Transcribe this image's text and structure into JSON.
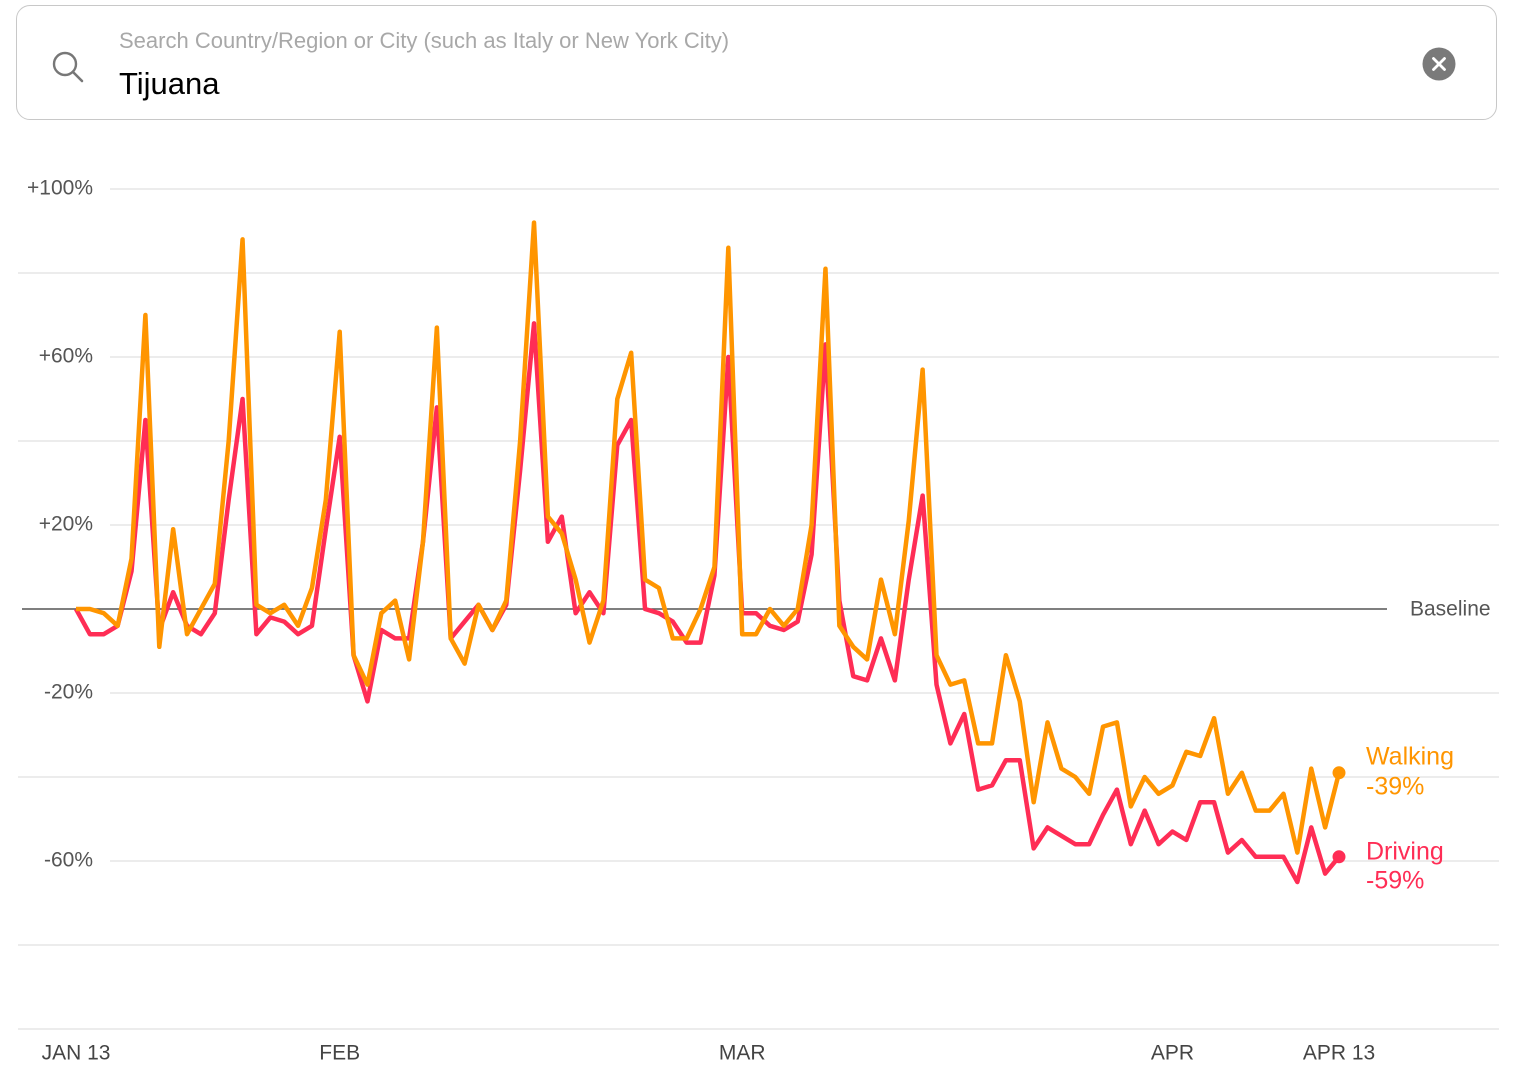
{
  "search": {
    "placeholder": "Search Country/Region or City (such as Italy or New York City)",
    "value": "Tijuana"
  },
  "chart_data": {
    "type": "line",
    "x": [
      0,
      1,
      2,
      3,
      4,
      5,
      6,
      7,
      8,
      9,
      10,
      11,
      12,
      13,
      14,
      15,
      16,
      17,
      18,
      19,
      20,
      21,
      22,
      23,
      24,
      25,
      26,
      27,
      28,
      29,
      30,
      31,
      32,
      33,
      34,
      35,
      36,
      37,
      38,
      39,
      40,
      41,
      42,
      43,
      44,
      45,
      46,
      47,
      48,
      49,
      50,
      51,
      52,
      53,
      54,
      55,
      56,
      57,
      58,
      59,
      60,
      61,
      62,
      63,
      64,
      65,
      66,
      67,
      68,
      69,
      70,
      71,
      72,
      73,
      74,
      75,
      76,
      77,
      78,
      79,
      80,
      81,
      82,
      83,
      84,
      85,
      86,
      87,
      88,
      89,
      90,
      91
    ],
    "xlim": [
      0,
      91
    ],
    "xticks": [
      {
        "value": 0,
        "label": "JAN 13"
      },
      {
        "value": 19,
        "label": "FEB"
      },
      {
        "value": 48,
        "label": "MAR"
      },
      {
        "value": 79,
        "label": "APR"
      },
      {
        "value": 91,
        "label": "APR 13"
      }
    ],
    "ylim": [
      -100,
      100
    ],
    "yticks": [
      {
        "value": 100,
        "label": "+100%"
      },
      {
        "value": 60,
        "label": "+60%"
      },
      {
        "value": 20,
        "label": "+20%"
      },
      {
        "value": -20,
        "label": "-20%"
      },
      {
        "value": -60,
        "label": "-60%"
      }
    ],
    "minor_yticks": [
      80,
      40,
      -40,
      -80,
      -100
    ],
    "baseline": {
      "value": 0,
      "label": "Baseline"
    },
    "grid": true,
    "series": [
      {
        "name": "Walking",
        "color": "#ff9500",
        "values": [
          0,
          0,
          -1,
          -4,
          12,
          70,
          -9,
          19,
          -6,
          0,
          6,
          40,
          88,
          1,
          -1,
          1,
          -4,
          5,
          26,
          66,
          -11,
          -18,
          -1,
          2,
          -12,
          16,
          67,
          -7,
          -13,
          1,
          -5,
          2,
          40,
          92,
          22,
          18,
          7,
          -8,
          2,
          50,
          61,
          7,
          5,
          -7,
          -7,
          0,
          10,
          86,
          -6,
          -6,
          0,
          -4,
          0,
          20,
          81,
          -4,
          -9,
          -12,
          7,
          -6,
          21,
          57,
          -11,
          -18,
          -17,
          -32,
          -32,
          -11,
          -22,
          -46,
          -27,
          -38,
          -40,
          -44,
          -28,
          -27,
          -47,
          -40,
          -44,
          -42,
          -34,
          -35,
          -26,
          -44,
          -39,
          -48,
          -48,
          -44,
          -58,
          -38,
          -52,
          -39
        ],
        "value_labels": [
          null,
          null,
          null,
          null,
          null,
          null,
          null,
          null,
          null,
          null,
          null,
          null,
          null,
          null,
          null,
          null,
          null,
          null,
          null,
          null,
          null,
          null,
          null,
          null,
          null,
          null,
          null,
          null,
          null,
          null,
          null,
          null,
          null,
          null,
          null,
          null,
          null,
          null,
          null,
          null,
          null,
          null,
          null,
          null,
          null,
          null,
          null,
          null,
          null,
          null,
          null,
          null,
          null,
          null,
          null,
          null,
          null,
          null,
          null,
          null,
          null,
          null,
          null,
          null,
          null,
          null,
          null,
          null,
          null,
          null,
          null,
          null,
          null,
          null,
          null,
          null,
          null,
          null,
          null,
          null,
          null,
          null,
          null,
          null,
          null,
          null,
          null,
          null,
          null,
          null,
          null,
          "-39%"
        ]
      },
      {
        "name": "Driving",
        "color": "#ff2d55",
        "values": [
          0,
          -6,
          -6,
          -4,
          9,
          45,
          -5,
          4,
          -4,
          -6,
          -1,
          26,
          50,
          -6,
          -2,
          -3,
          -6,
          -4,
          19,
          41,
          -11,
          -22,
          -5,
          -7,
          -7,
          16,
          48,
          -7,
          -3,
          1,
          -5,
          1,
          33,
          68,
          16,
          22,
          -1,
          4,
          -1,
          39,
          45,
          0,
          -1,
          -3,
          -8,
          -8,
          8,
          60,
          -1,
          -1,
          -4,
          -5,
          -3,
          13,
          63,
          2,
          -16,
          -17,
          -7,
          -17,
          7,
          27,
          -18,
          -32,
          -25,
          -43,
          -42,
          -36,
          -36,
          -57,
          -52,
          -54,
          -56,
          -56,
          -49,
          -43,
          -56,
          -48,
          -56,
          -53,
          -55,
          -46,
          -46,
          -58,
          -55,
          -59,
          -59,
          -59,
          -65,
          -52,
          -63,
          -59
        ],
        "value_labels": [
          null,
          null,
          null,
          null,
          null,
          null,
          null,
          null,
          null,
          null,
          null,
          null,
          null,
          null,
          null,
          null,
          null,
          null,
          null,
          null,
          null,
          null,
          null,
          null,
          null,
          null,
          null,
          null,
          null,
          null,
          null,
          null,
          null,
          null,
          null,
          null,
          null,
          null,
          null,
          null,
          null,
          null,
          null,
          null,
          null,
          null,
          null,
          null,
          null,
          null,
          null,
          null,
          null,
          null,
          null,
          null,
          null,
          null,
          null,
          null,
          null,
          null,
          null,
          null,
          null,
          null,
          null,
          null,
          null,
          null,
          null,
          null,
          null,
          null,
          null,
          null,
          null,
          null,
          null,
          null,
          null,
          null,
          null,
          null,
          null,
          null,
          null,
          null,
          null,
          null,
          null,
          "-59%"
        ]
      }
    ]
  }
}
